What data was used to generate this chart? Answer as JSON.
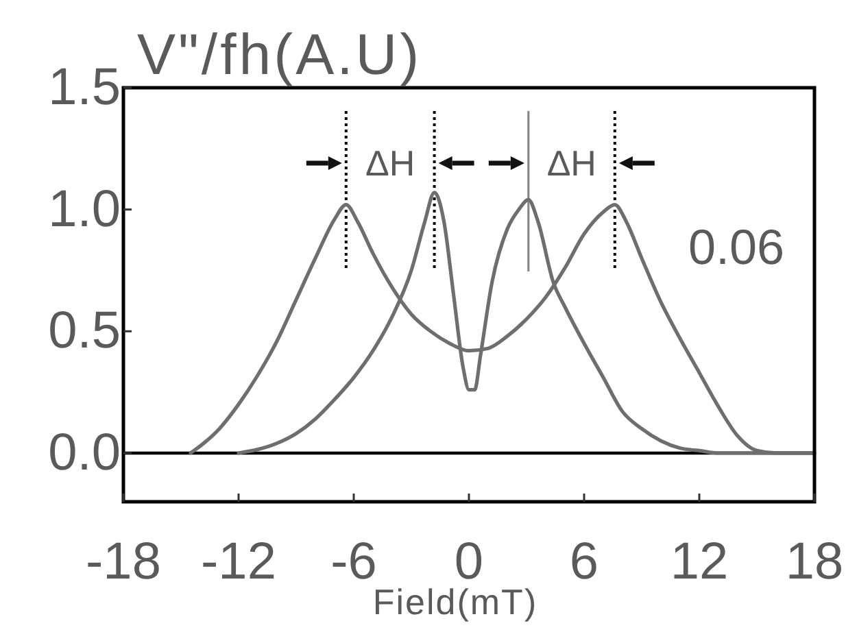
{
  "chart_data": {
    "type": "line",
    "ylabel": "V\"/fh(A.U)",
    "xlabel": "Field(mT)",
    "annotations": [
      "ΔH",
      "ΔH",
      "0.06"
    ],
    "series": [
      {
        "color": "#6e6e6e",
        "x": [
          -14.5,
          -13,
          -12,
          -11,
          -10,
          -9,
          -8,
          -7,
          -6.4,
          -5.8,
          -5,
          -4,
          -3,
          -2,
          -1,
          0,
          1,
          2,
          3,
          4,
          5,
          6,
          7,
          7.6,
          8.2,
          9,
          10,
          11,
          12,
          13,
          14,
          15,
          16,
          18
        ],
        "values": [
          0,
          0.1,
          0.2,
          0.32,
          0.46,
          0.63,
          0.8,
          0.96,
          1.02,
          0.95,
          0.82,
          0.68,
          0.57,
          0.5,
          0.45,
          0.42,
          0.43,
          0.48,
          0.55,
          0.64,
          0.76,
          0.9,
          0.99,
          1.02,
          0.95,
          0.8,
          0.62,
          0.47,
          0.33,
          0.19,
          0.07,
          0.01,
          0,
          0
        ]
      },
      {
        "color": "#6e6e6e",
        "x": [
          -12,
          -10,
          -9,
          -8,
          -7,
          -6,
          -5,
          -4,
          -3,
          -2.3,
          -1.8,
          -1.3,
          -0.8,
          -0.3,
          0,
          0.3,
          0.6,
          1.2,
          2,
          2.6,
          3.1,
          3.6,
          4.4,
          5,
          6,
          7,
          8,
          9,
          10,
          11,
          12,
          13,
          18
        ],
        "values": [
          0,
          0.04,
          0.08,
          0.14,
          0.22,
          0.31,
          0.42,
          0.56,
          0.75,
          0.95,
          1.07,
          0.95,
          0.65,
          0.35,
          0.26,
          0.26,
          0.4,
          0.7,
          0.92,
          1.0,
          1.04,
          0.95,
          0.7,
          0.6,
          0.45,
          0.31,
          0.17,
          0.1,
          0.05,
          0.02,
          0.01,
          0,
          0
        ]
      }
    ],
    "xlim": [
      -18,
      18
    ],
    "xticks": [
      -18,
      -12,
      -6,
      0,
      6,
      12,
      18
    ],
    "ylim": [
      -0.2,
      1.5
    ],
    "yticks": [
      {
        "value": 0,
        "label": "0.0"
      },
      0.5,
      {
        "value": 1,
        "label": "1.0"
      },
      1.5
    ],
    "ref_lines": [
      {
        "axis": "y",
        "value": 0,
        "color": "#000000"
      },
      {
        "axis": "x",
        "value": -6.4,
        "color": "#000000",
        "line_style": "dotted"
      },
      {
        "axis": "x",
        "value": -1.8,
        "color": "#000000",
        "line_style": "dotted"
      },
      {
        "axis": "x",
        "value": 3.1,
        "color": "#888888",
        "line_style": "solid"
      },
      {
        "axis": "x",
        "value": 7.6,
        "color": "#000000",
        "line_style": "dotted"
      }
    ]
  }
}
